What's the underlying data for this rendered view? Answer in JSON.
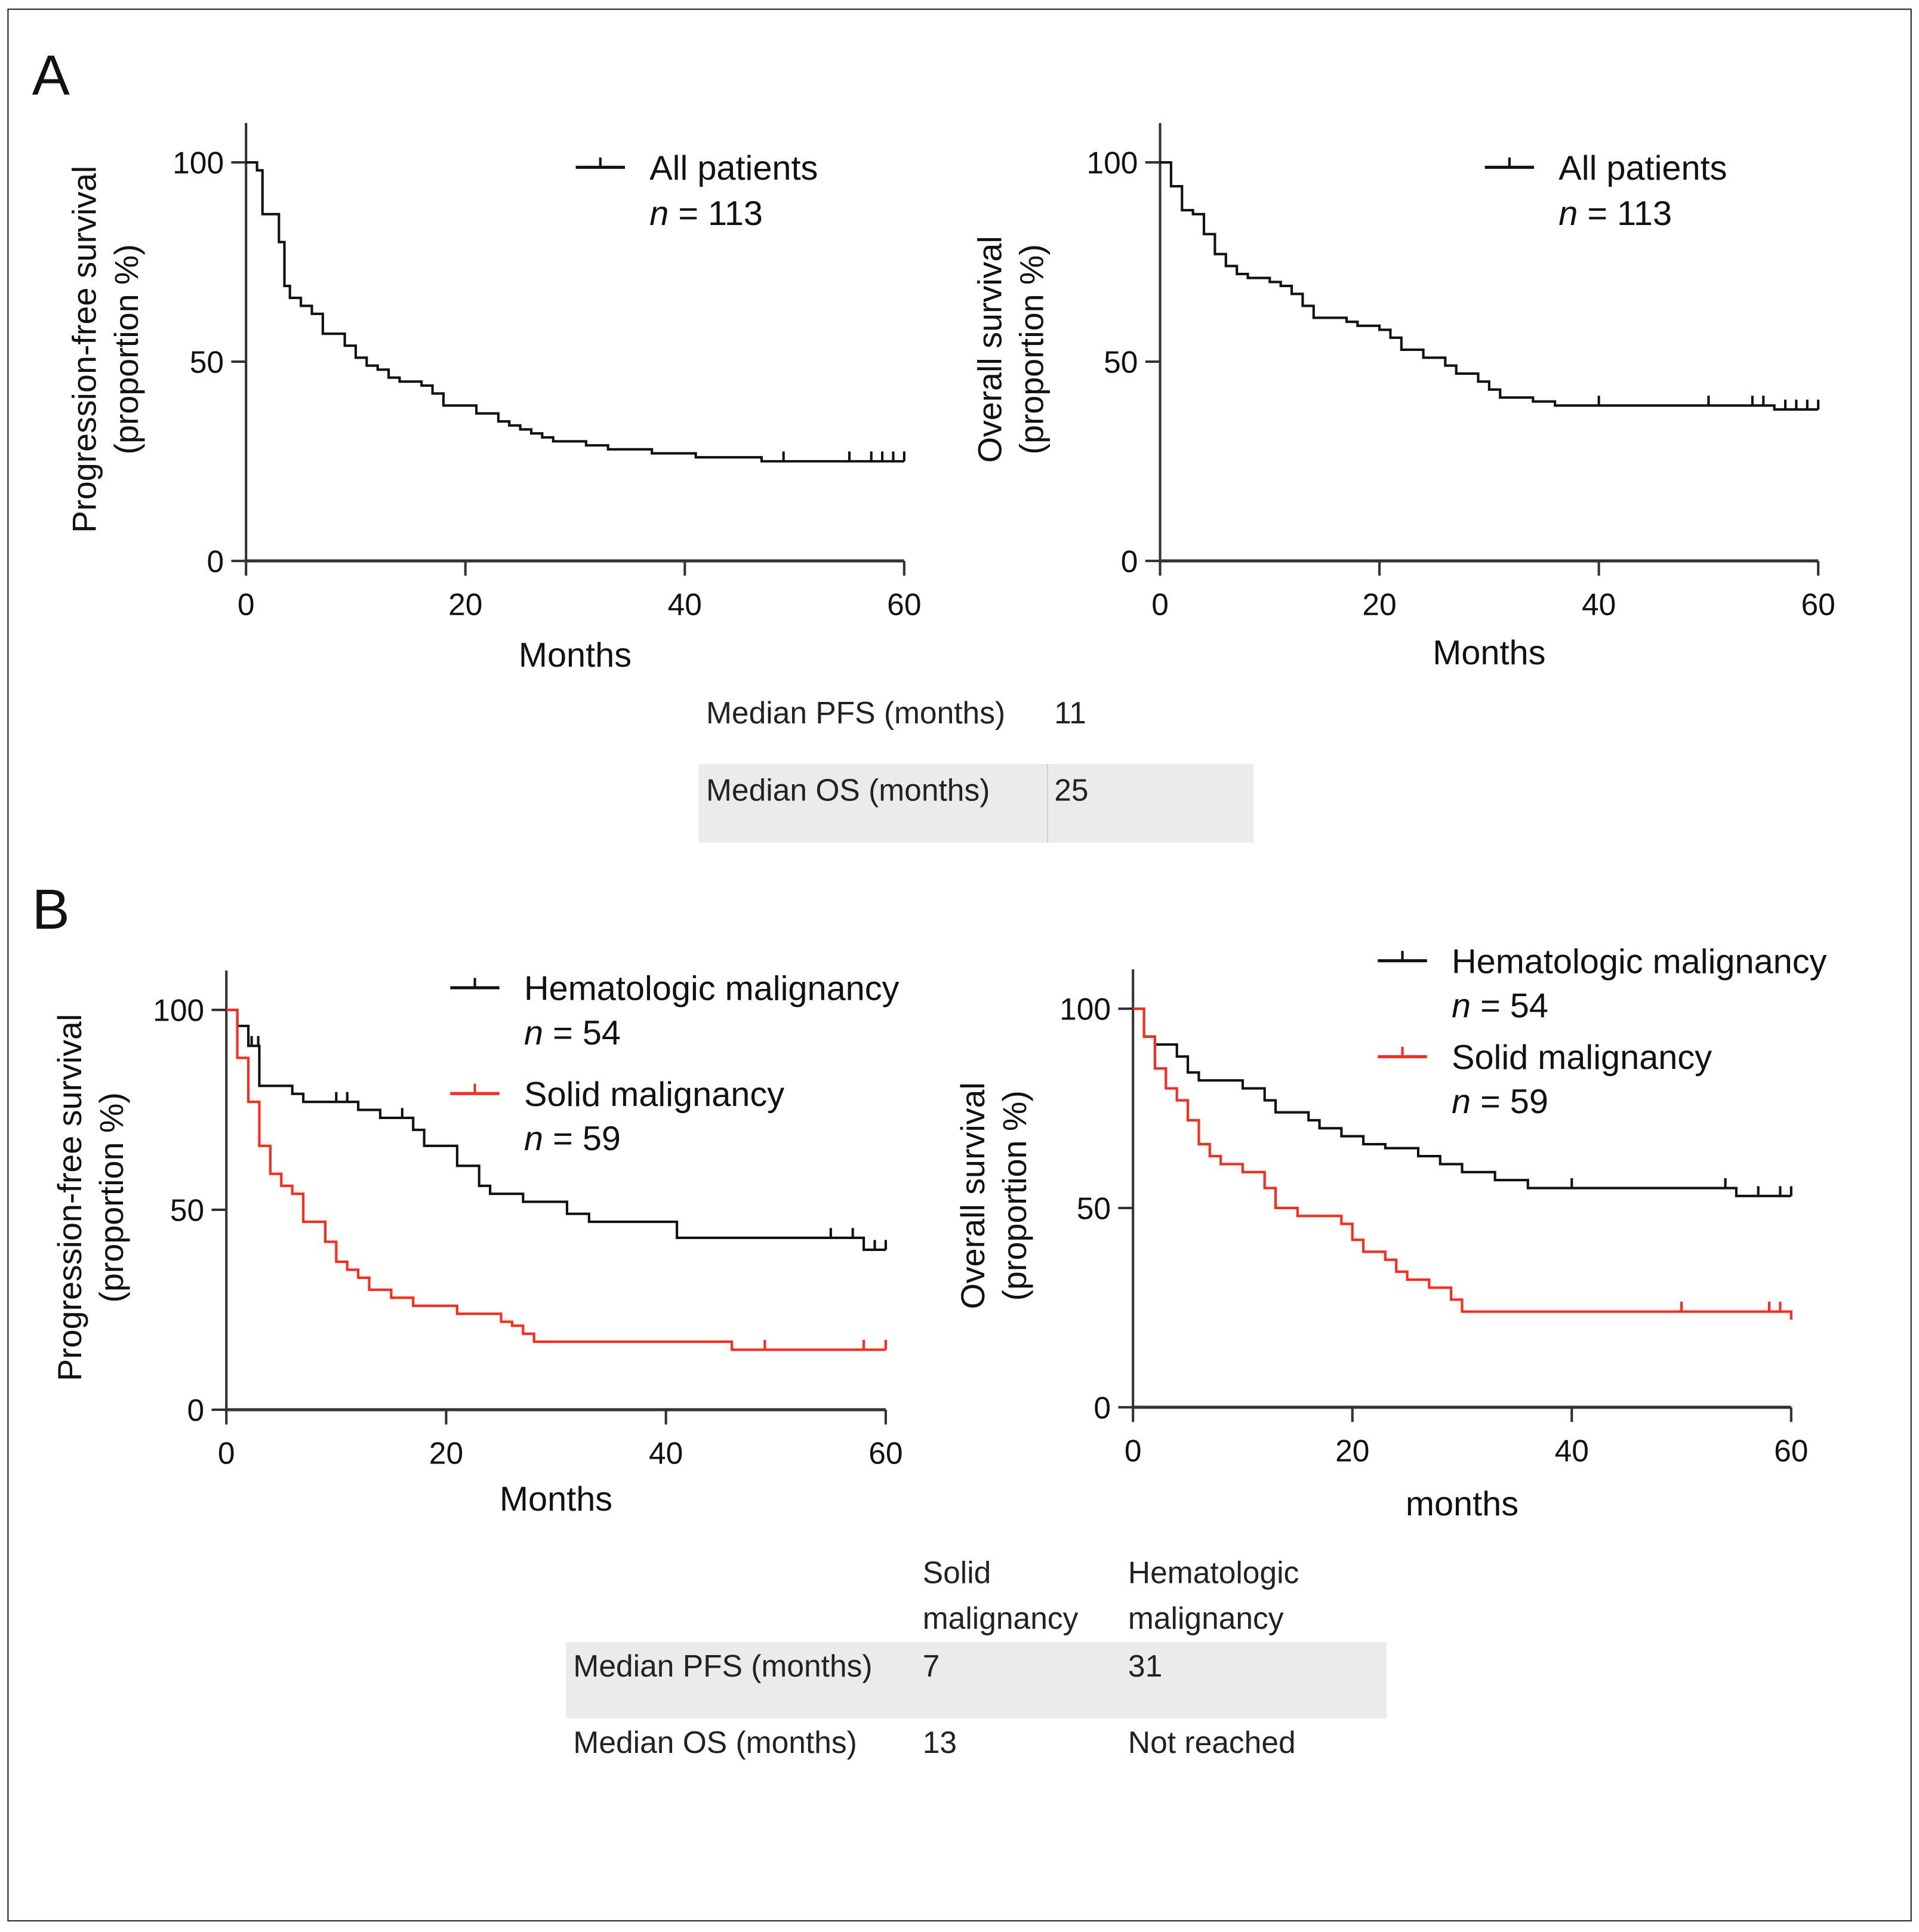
{
  "panels": {
    "a": "A",
    "b": "B"
  },
  "colors": {
    "black": "#111111",
    "red": "#ff2a1a"
  },
  "chart_data": [
    {
      "type": "line",
      "subtype": "kaplan-meier",
      "panel": "A",
      "ylabel": [
        "Progression-free survival",
        "(proportion %)"
      ],
      "xlabel": "Months",
      "xlim": [
        0,
        60
      ],
      "ylim": [
        0,
        100
      ],
      "xticks": [
        0,
        20,
        40,
        60
      ],
      "yticks": [
        0,
        50,
        100
      ],
      "legend_position": "top-right",
      "series": [
        {
          "name": "All patients",
          "n_label": "= 113",
          "color": "#111111",
          "steps": [
            [
              0,
              100
            ],
            [
              1,
              98
            ],
            [
              1.5,
              87
            ],
            [
              3,
              80
            ],
            [
              3.5,
              69
            ],
            [
              4,
              66
            ],
            [
              5,
              64
            ],
            [
              6,
              62
            ],
            [
              7,
              57
            ],
            [
              9,
              54
            ],
            [
              10,
              51
            ],
            [
              11,
              49
            ],
            [
              12,
              48
            ],
            [
              13,
              46
            ],
            [
              14,
              45
            ],
            [
              16,
              44
            ],
            [
              17,
              42
            ],
            [
              18,
              39
            ],
            [
              21,
              37
            ],
            [
              23,
              35
            ],
            [
              24,
              34
            ],
            [
              25,
              33
            ],
            [
              26,
              32
            ],
            [
              27,
              31
            ],
            [
              28,
              30
            ],
            [
              31,
              29
            ],
            [
              33,
              28
            ],
            [
              37,
              27
            ],
            [
              41,
              26
            ],
            [
              47,
              25
            ],
            [
              60,
              25
            ]
          ],
          "censored": [
            49,
            55,
            57,
            58,
            59,
            60
          ]
        }
      ]
    },
    {
      "type": "line",
      "subtype": "kaplan-meier",
      "panel": "A",
      "ylabel": [
        "Overall survival",
        "(proportion %)"
      ],
      "xlabel": "Months",
      "xlim": [
        0,
        60
      ],
      "ylim": [
        0,
        100
      ],
      "xticks": [
        0,
        20,
        40,
        60
      ],
      "yticks": [
        0,
        50,
        100
      ],
      "legend_position": "top-right",
      "series": [
        {
          "name": "All patients",
          "n_label": "= 113",
          "color": "#111111",
          "steps": [
            [
              0,
              100
            ],
            [
              1,
              94
            ],
            [
              2,
              88
            ],
            [
              3,
              87
            ],
            [
              4,
              82
            ],
            [
              5,
              77
            ],
            [
              6,
              74
            ],
            [
              7,
              72
            ],
            [
              8,
              71
            ],
            [
              10,
              70
            ],
            [
              11,
              69
            ],
            [
              12,
              67
            ],
            [
              13,
              64
            ],
            [
              14,
              61
            ],
            [
              17,
              60
            ],
            [
              18,
              59
            ],
            [
              20,
              58
            ],
            [
              21,
              56
            ],
            [
              22,
              53
            ],
            [
              24,
              51
            ],
            [
              26,
              49
            ],
            [
              27,
              47
            ],
            [
              29,
              45
            ],
            [
              30,
              43
            ],
            [
              31,
              41
            ],
            [
              34,
              40
            ],
            [
              36,
              39
            ],
            [
              56,
              38
            ],
            [
              60,
              38
            ]
          ],
          "censored": [
            40,
            50,
            54,
            55,
            57,
            58,
            59,
            60
          ]
        }
      ]
    },
    {
      "type": "line",
      "subtype": "kaplan-meier",
      "panel": "B",
      "ylabel": [
        "Progression-free survival",
        "(proportion %)"
      ],
      "xlabel": "Months",
      "xlim": [
        0,
        60
      ],
      "ylim": [
        0,
        100
      ],
      "xticks": [
        0,
        20,
        40,
        60
      ],
      "yticks": [
        0,
        50,
        100
      ],
      "legend_position": "top-right",
      "series": [
        {
          "name": "Hematologic malignancy",
          "n_label": "= 54",
          "color": "#111111",
          "steps": [
            [
              0,
              100
            ],
            [
              1,
              96
            ],
            [
              2,
              91
            ],
            [
              3,
              81
            ],
            [
              6,
              79
            ],
            [
              7,
              77
            ],
            [
              12,
              75
            ],
            [
              14,
              73
            ],
            [
              17,
              70
            ],
            [
              18,
              66
            ],
            [
              21,
              61
            ],
            [
              23,
              56
            ],
            [
              24,
              54
            ],
            [
              27,
              52
            ],
            [
              31,
              49
            ],
            [
              33,
              47
            ],
            [
              41,
              43
            ],
            [
              58,
              40
            ],
            [
              60,
              40
            ]
          ],
          "censored": [
            2.3,
            2.9,
            10,
            11,
            16,
            55,
            57,
            59,
            60
          ]
        },
        {
          "name": "Solid malignancy",
          "n_label": "= 59",
          "color": "#ff2a1a",
          "steps": [
            [
              0,
              100
            ],
            [
              1,
              88
            ],
            [
              2,
              77
            ],
            [
              3,
              66
            ],
            [
              4,
              59
            ],
            [
              5,
              56
            ],
            [
              6,
              54
            ],
            [
              7,
              47
            ],
            [
              9,
              42
            ],
            [
              10,
              37
            ],
            [
              11,
              35
            ],
            [
              12,
              33
            ],
            [
              13,
              30
            ],
            [
              15,
              28
            ],
            [
              17,
              26
            ],
            [
              21,
              24
            ],
            [
              25,
              22
            ],
            [
              26,
              21
            ],
            [
              27,
              19
            ],
            [
              28,
              17
            ],
            [
              46,
              15
            ],
            [
              60,
              15
            ]
          ],
          "censored": [
            49,
            58,
            60
          ]
        }
      ]
    },
    {
      "type": "line",
      "subtype": "kaplan-meier",
      "panel": "B",
      "ylabel": [
        "Overall survival",
        "(proportion %)"
      ],
      "xlabel": "months",
      "xlim": [
        0,
        60
      ],
      "ylim": [
        0,
        100
      ],
      "xticks": [
        0,
        20,
        40,
        60
      ],
      "yticks": [
        0,
        50,
        100
      ],
      "legend_position": "top-right",
      "series": [
        {
          "name": "Hematologic malignancy",
          "n_label": "= 54",
          "color": "#111111",
          "steps": [
            [
              0,
              100
            ],
            [
              1,
              93
            ],
            [
              2,
              91
            ],
            [
              4,
              88
            ],
            [
              5,
              84
            ],
            [
              6,
              82
            ],
            [
              10,
              80
            ],
            [
              12,
              77
            ],
            [
              13,
              74
            ],
            [
              16,
              72
            ],
            [
              17,
              70
            ],
            [
              19,
              68
            ],
            [
              21,
              66
            ],
            [
              23,
              65
            ],
            [
              26,
              63
            ],
            [
              28,
              61
            ],
            [
              30,
              59
            ],
            [
              33,
              57
            ],
            [
              36,
              55
            ],
            [
              55,
              53
            ],
            [
              60,
              53
            ]
          ],
          "censored": [
            40,
            54,
            57,
            59,
            60
          ]
        },
        {
          "name": "Solid malignancy",
          "n_label": "= 59",
          "color": "#ff2a1a",
          "steps": [
            [
              0,
              100
            ],
            [
              1,
              93
            ],
            [
              2,
              85
            ],
            [
              3,
              80
            ],
            [
              4,
              77
            ],
            [
              5,
              72
            ],
            [
              6,
              66
            ],
            [
              7,
              63
            ],
            [
              8,
              61
            ],
            [
              10,
              59
            ],
            [
              12,
              55
            ],
            [
              13,
              50
            ],
            [
              15,
              48
            ],
            [
              19,
              46
            ],
            [
              20,
              42
            ],
            [
              21,
              39
            ],
            [
              23,
              37
            ],
            [
              24,
              34
            ],
            [
              25,
              32
            ],
            [
              27,
              30
            ],
            [
              29,
              27
            ],
            [
              30,
              24
            ],
            [
              60,
              22
            ]
          ],
          "censored": [
            50,
            58,
            59
          ]
        }
      ]
    }
  ],
  "table_a": {
    "rows": [
      {
        "label": "Median PFS (months)",
        "value": "11"
      },
      {
        "label": "Median OS (months)",
        "value": "25"
      }
    ]
  },
  "table_b": {
    "headers": [
      [
        "Solid",
        "malignancy"
      ],
      [
        "Hematologic",
        "malignancy"
      ]
    ],
    "rows": [
      {
        "label": "Median PFS (months)",
        "solid": "7",
        "heme": "31"
      },
      {
        "label": "Median OS (months)",
        "solid": "13",
        "heme": "Not reached"
      }
    ]
  }
}
